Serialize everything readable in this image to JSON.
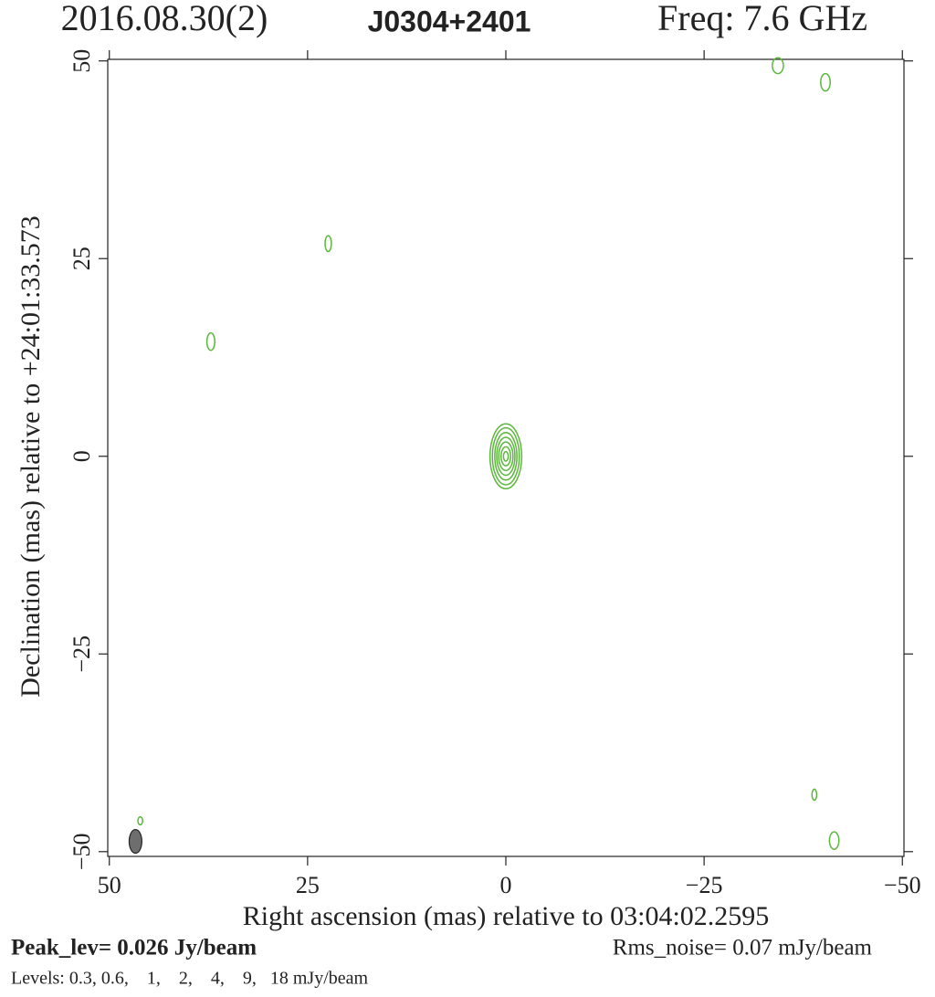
{
  "chart_data": {
    "type": "contour",
    "title_date": "2016.08.30(2)",
    "title_source": "J0304+2401",
    "title_freq": "Freq: 7.6 GHz",
    "x_label": "Right ascension (mas) relative to 03:04:02.2595",
    "y_label": "Declination (mas) relative to +24:01:33.573",
    "peak_level": "Peak_lev=  0.026 Jy/beam",
    "rms_noise": "Rms_noise= 0.07 mJy/beam",
    "levels": "Levels: 0.3, 0.6,    1,    2,    4,    9,   18 mJy/beam",
    "xlim": [
      50.2,
      -50.2
    ],
    "ylim": [
      -50.6,
      50.2
    ],
    "xticks": [
      50,
      25,
      0,
      {
        "value": -25,
        "label": "−25"
      },
      {
        "value": -50,
        "label": "−50"
      }
    ],
    "yticks": [
      {
        "value": -50,
        "label": "−50"
      },
      {
        "value": -25,
        "label": "−25"
      },
      0,
      25,
      50
    ],
    "contour_color": "#5cb83c",
    "beam_color": "#6e6e6e",
    "contours": [
      {
        "x": 0,
        "y": 0,
        "rx": 2.0,
        "ry": 4.1
      },
      {
        "x": 0,
        "y": 0,
        "rx": 1.7,
        "ry": 3.6
      },
      {
        "x": 0,
        "y": 0,
        "rx": 1.4,
        "ry": 3.0
      },
      {
        "x": 0,
        "y": 0,
        "rx": 1.15,
        "ry": 2.4
      },
      {
        "x": 0,
        "y": 0,
        "rx": 0.9,
        "ry": 1.8
      },
      {
        "x": 0,
        "y": 0,
        "rx": 0.6,
        "ry": 1.2
      },
      {
        "x": 0,
        "y": 0,
        "rx": 0.3,
        "ry": 0.6
      },
      {
        "x": -34.3,
        "y": 49.4,
        "rx": 0.7,
        "ry": 1.0
      },
      {
        "x": -40.3,
        "y": 47.3,
        "rx": 0.6,
        "ry": 1.1
      },
      {
        "x": 22.4,
        "y": 26.9,
        "rx": 0.4,
        "ry": 1.0
      },
      {
        "x": 37.2,
        "y": 14.5,
        "rx": 0.5,
        "ry": 1.1
      },
      {
        "x": -38.9,
        "y": -42.8,
        "rx": 0.3,
        "ry": 0.7
      },
      {
        "x": -41.4,
        "y": -48.6,
        "rx": 0.6,
        "ry": 1.1
      },
      {
        "x": 46.1,
        "y": -46.1,
        "rx": 0.3,
        "ry": 0.5
      }
    ],
    "beam": {
      "x": 46.7,
      "y": -48.7,
      "rx": 0.8,
      "ry": 1.5
    }
  }
}
